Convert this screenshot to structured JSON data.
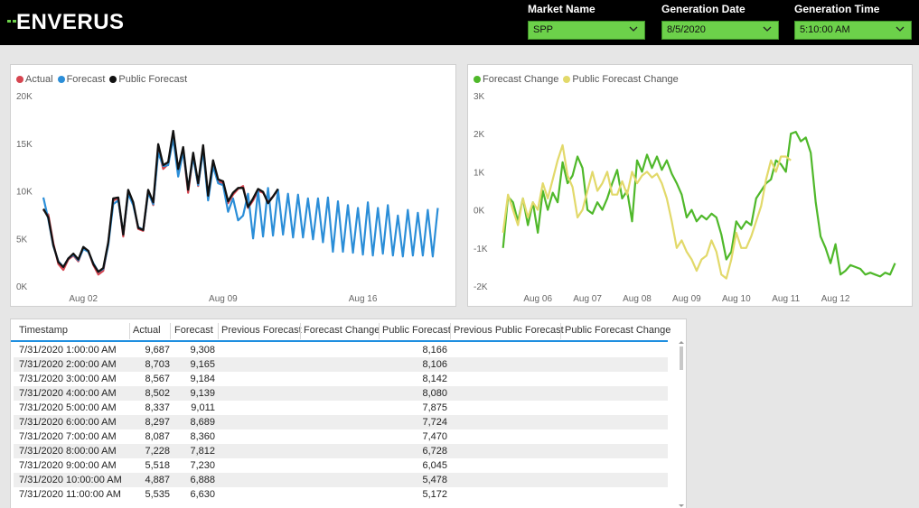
{
  "header": {
    "logo_text": "ENVERUS",
    "slicers": [
      {
        "label": "Market Name",
        "value": "SPP"
      },
      {
        "label": "Generation Date",
        "value": "8/5/2020"
      },
      {
        "label": "Generation Time",
        "value": "5:10:00 AM"
      }
    ]
  },
  "chart_data": [
    {
      "type": "line",
      "legend": [
        "Actual",
        "Forecast",
        "Public Forecast"
      ],
      "colors": {
        "Actual": "#d64550",
        "Forecast": "#2b8ed8",
        "Public Forecast": "#111111"
      },
      "y_ticks": [
        "0K",
        "5K",
        "10K",
        "15K",
        "20K"
      ],
      "ylim": [
        0,
        20000
      ],
      "x_ticks": [
        {
          "label": "Aug 02",
          "day": 2
        },
        {
          "label": "Aug 09",
          "day": 9
        },
        {
          "label": "Aug 16",
          "day": 16
        }
      ],
      "xlim_day": [
        31,
        20
      ],
      "series": [
        {
          "name": "Actual",
          "x_day": [
            31.0,
            31.25,
            31.5,
            31.75,
            32.0,
            32.25,
            32.5,
            32.75,
            33.0,
            33.25,
            33.5,
            33.75,
            34.0,
            34.25,
            34.5,
            34.75,
            35.0,
            35.25,
            35.5,
            35.75,
            36.0,
            36.25,
            36.5,
            36.75,
            37.0,
            37.25,
            37.5,
            37.75,
            38.0,
            38.25,
            38.5,
            38.75,
            39.0,
            39.25,
            39.5,
            39.75,
            40.0,
            40.25,
            40.5,
            40.75,
            41.0,
            41.25,
            41.5,
            41.75,
            42.0,
            42.25,
            42.5,
            42.75
          ],
          "values": [
            8000,
            7500,
            4500,
            2300,
            1700,
            2800,
            3200,
            2600,
            4000,
            3700,
            2200,
            1200,
            1600,
            4500,
            9000,
            9200,
            5200,
            10000,
            8700,
            6000,
            5800,
            10000,
            8500,
            14500,
            12300,
            12800,
            15800,
            12000,
            14300,
            9800,
            13800,
            10500,
            14600,
            9200,
            13000,
            11000,
            10800,
            8700,
            9600,
            10200,
            10500,
            8200,
            9000,
            10000,
            9800,
            8900,
            9400,
            10100
          ]
        },
        {
          "name": "Forecast",
          "x_day": [
            31.0,
            31.25,
            31.5,
            31.75,
            32.0,
            32.25,
            32.5,
            32.75,
            33.0,
            33.25,
            33.5,
            33.75,
            34.0,
            34.25,
            34.5,
            34.75,
            35.0,
            35.25,
            35.5,
            35.75,
            36.0,
            36.25,
            36.5,
            36.75,
            37.0,
            37.25,
            37.5,
            37.75,
            38.0,
            38.25,
            38.5,
            38.75,
            39.0,
            39.25,
            39.5,
            39.75,
            40.0,
            40.25,
            40.5,
            40.75,
            41.0,
            41.25,
            41.5,
            41.75,
            42.0,
            42.25,
            42.5,
            42.75,
            43.0,
            43.25,
            43.5,
            43.75,
            44.0,
            44.25,
            44.5,
            44.75,
            45.0,
            45.25,
            45.5,
            45.75,
            46.0,
            46.25,
            46.5,
            46.75,
            47.0,
            47.25,
            47.5,
            47.75,
            48.0,
            48.25,
            48.5,
            48.75,
            49.0,
            49.25,
            49.5,
            49.75,
            50.0,
            50.25,
            50.5,
            50.75
          ],
          "values": [
            9300,
            7000,
            4200,
            2600,
            2000,
            2900,
            3300,
            2700,
            3900,
            3600,
            2400,
            1500,
            1800,
            4300,
            8600,
            9000,
            5500,
            9700,
            8500,
            6200,
            5900,
            9800,
            8600,
            14000,
            12600,
            12700,
            15500,
            11500,
            14100,
            10300,
            13500,
            10600,
            14200,
            9000,
            12600,
            10800,
            10600,
            7800,
            9200,
            6900,
            7400,
            9700,
            5000,
            10000,
            5200,
            10300,
            5300,
            10100,
            5400,
            9700,
            5100,
            9600,
            5100,
            9200,
            4900,
            9200,
            4600,
            9300,
            3600,
            8900,
            3600,
            8500,
            3500,
            8200,
            3300,
            8800,
            3200,
            8200,
            3400,
            8500,
            3200,
            7400,
            3100,
            8000,
            3200,
            7700,
            3200,
            8000,
            3100,
            8200
          ]
        },
        {
          "name": "Public Forecast",
          "x_day": [
            31.0,
            31.25,
            31.5,
            31.75,
            32.0,
            32.25,
            32.5,
            32.75,
            33.0,
            33.25,
            33.5,
            33.75,
            34.0,
            34.25,
            34.5,
            34.75,
            35.0,
            35.25,
            35.5,
            35.75,
            36.0,
            36.25,
            36.5,
            36.75,
            37.0,
            37.25,
            37.5,
            37.75,
            38.0,
            38.25,
            38.5,
            38.75,
            39.0,
            39.25,
            39.5,
            39.75,
            40.0,
            40.25,
            40.5,
            40.75,
            41.0,
            41.25,
            41.5,
            41.75,
            42.0,
            42.25,
            42.5,
            42.75
          ],
          "values": [
            8100,
            7200,
            4300,
            2500,
            2000,
            2900,
            3400,
            2800,
            4100,
            3700,
            2300,
            1500,
            1900,
            4600,
            9200,
            9300,
            5400,
            10100,
            8800,
            6100,
            5900,
            10100,
            8800,
            14900,
            12700,
            13000,
            16300,
            12300,
            14600,
            10100,
            14000,
            10800,
            14800,
            9500,
            13200,
            11200,
            11000,
            8900,
            9800,
            10300,
            10300,
            8300,
            9200,
            10200,
            9900,
            8700,
            9400,
            10200
          ]
        }
      ]
    },
    {
      "type": "line",
      "legend": [
        "Forecast Change",
        "Public Forecast Change"
      ],
      "colors": {
        "Forecast Change": "#4fb82a",
        "Public Forecast Change": "#e2d96a"
      },
      "y_ticks": [
        "-2K",
        "-1K",
        "0K",
        "1K",
        "2K",
        "3K"
      ],
      "ylim": [
        -2000,
        3000
      ],
      "x_ticks": [
        {
          "label": "Aug 06",
          "day": 6
        },
        {
          "label": "Aug 07",
          "day": 7
        },
        {
          "label": "Aug 08",
          "day": 8
        },
        {
          "label": "Aug 09",
          "day": 9
        },
        {
          "label": "Aug 10",
          "day": 10
        },
        {
          "label": "Aug 11",
          "day": 11
        },
        {
          "label": "Aug 12",
          "day": 12
        }
      ],
      "xlim_day": [
        5.25,
        13.3
      ],
      "series": [
        {
          "name": "Forecast Change",
          "x_day": [
            5.3,
            5.4,
            5.5,
            5.6,
            5.7,
            5.8,
            5.9,
            6.0,
            6.1,
            6.2,
            6.3,
            6.4,
            6.5,
            6.6,
            6.7,
            6.8,
            6.9,
            7.0,
            7.1,
            7.2,
            7.3,
            7.4,
            7.5,
            7.6,
            7.7,
            7.8,
            7.9,
            8.0,
            8.1,
            8.2,
            8.3,
            8.4,
            8.5,
            8.6,
            8.7,
            8.8,
            8.9,
            9.0,
            9.1,
            9.2,
            9.3,
            9.4,
            9.5,
            9.6,
            9.7,
            9.8,
            9.9,
            10.0,
            10.1,
            10.2,
            10.3,
            10.4,
            10.5,
            10.6,
            10.7,
            10.8,
            10.9,
            11.0,
            11.1,
            11.2,
            11.3,
            11.4,
            11.5,
            11.6,
            11.7,
            11.8,
            11.9,
            12.0,
            12.1,
            12.2,
            12.3,
            12.4,
            12.5,
            12.6,
            12.7,
            12.8,
            12.9,
            13.0,
            13.1,
            13.2
          ],
          "values": [
            -1000,
            350,
            200,
            -300,
            300,
            -400,
            200,
            -600,
            500,
            0,
            450,
            200,
            1250,
            700,
            900,
            1400,
            1100,
            0,
            -100,
            200,
            0,
            300,
            700,
            1050,
            300,
            500,
            -300,
            1300,
            1000,
            1450,
            1100,
            1400,
            1050,
            1300,
            950,
            700,
            400,
            -200,
            0,
            -300,
            -150,
            -250,
            -100,
            -200,
            -650,
            -1300,
            -1100,
            -300,
            -500,
            -300,
            -400,
            300,
            500,
            700,
            800,
            1300,
            1200,
            1000,
            2000,
            2050,
            1800,
            1900,
            1500,
            200,
            -700,
            -1000,
            -1400,
            -900,
            -1700,
            -1600,
            -1450,
            -1500,
            -1550,
            -1700,
            -1650,
            -1700,
            -1750,
            -1650,
            -1700,
            -1400
          ]
        },
        {
          "name": "Public Forecast Change",
          "x_day": [
            5.3,
            5.4,
            5.5,
            5.6,
            5.7,
            5.8,
            5.9,
            6.0,
            6.1,
            6.2,
            6.3,
            6.4,
            6.5,
            6.6,
            6.7,
            6.8,
            6.9,
            7.0,
            7.1,
            7.2,
            7.3,
            7.4,
            7.5,
            7.6,
            7.7,
            7.8,
            7.9,
            8.0,
            8.1,
            8.2,
            8.3,
            8.4,
            8.5,
            8.6,
            8.7,
            8.8,
            8.9,
            9.0,
            9.1,
            9.2,
            9.3,
            9.4,
            9.5,
            9.6,
            9.7,
            9.8,
            9.9,
            10.0,
            10.1,
            10.2,
            10.3,
            10.4,
            10.5,
            10.6,
            10.7,
            10.8,
            10.9,
            11.0,
            11.1
          ],
          "values": [
            -600,
            400,
            0,
            -400,
            300,
            -200,
            200,
            0,
            700,
            300,
            800,
            1300,
            1700,
            900,
            600,
            -200,
            0,
            500,
            1000,
            500,
            700,
            1000,
            400,
            400,
            750,
            400,
            1000,
            700,
            900,
            1000,
            850,
            950,
            700,
            300,
            -300,
            -1000,
            -800,
            -1100,
            -1300,
            -1600,
            -1300,
            -1200,
            -800,
            -1100,
            -1700,
            -1800,
            -1300,
            -600,
            -1000,
            -1000,
            -700,
            -300,
            100,
            800,
            1300,
            1000,
            1400,
            1400,
            1300
          ]
        }
      ]
    }
  ],
  "table": {
    "columns": [
      "Timestamp",
      "Actual",
      "Forecast",
      "Previous Forecast",
      "Forecast Change",
      "Public Forecast",
      "Previous Public Forecast",
      "Public Forecast Change"
    ],
    "rows": [
      {
        "timestamp": "7/31/2020 1:00:00 AM",
        "actual": "9,687",
        "forecast": "9,308",
        "public_forecast": "8,166"
      },
      {
        "timestamp": "7/31/2020 2:00:00 AM",
        "actual": "8,703",
        "forecast": "9,165",
        "public_forecast": "8,106"
      },
      {
        "timestamp": "7/31/2020 3:00:00 AM",
        "actual": "8,567",
        "forecast": "9,184",
        "public_forecast": "8,142"
      },
      {
        "timestamp": "7/31/2020 4:00:00 AM",
        "actual": "8,502",
        "forecast": "9,139",
        "public_forecast": "8,080"
      },
      {
        "timestamp": "7/31/2020 5:00:00 AM",
        "actual": "8,337",
        "forecast": "9,011",
        "public_forecast": "7,875"
      },
      {
        "timestamp": "7/31/2020 6:00:00 AM",
        "actual": "8,297",
        "forecast": "8,689",
        "public_forecast": "7,724"
      },
      {
        "timestamp": "7/31/2020 7:00:00 AM",
        "actual": "8,087",
        "forecast": "8,360",
        "public_forecast": "7,470"
      },
      {
        "timestamp": "7/31/2020 8:00:00 AM",
        "actual": "7,228",
        "forecast": "7,812",
        "public_forecast": "6,728"
      },
      {
        "timestamp": "7/31/2020 9:00:00 AM",
        "actual": "5,518",
        "forecast": "7,230",
        "public_forecast": "6,045"
      },
      {
        "timestamp": "7/31/2020 10:00:00 AM",
        "actual": "4,887",
        "forecast": "6,888",
        "public_forecast": "5,478"
      },
      {
        "timestamp": "7/31/2020 11:00:00 AM",
        "actual": "5,535",
        "forecast": "6,630",
        "public_forecast": "5,172"
      }
    ]
  }
}
